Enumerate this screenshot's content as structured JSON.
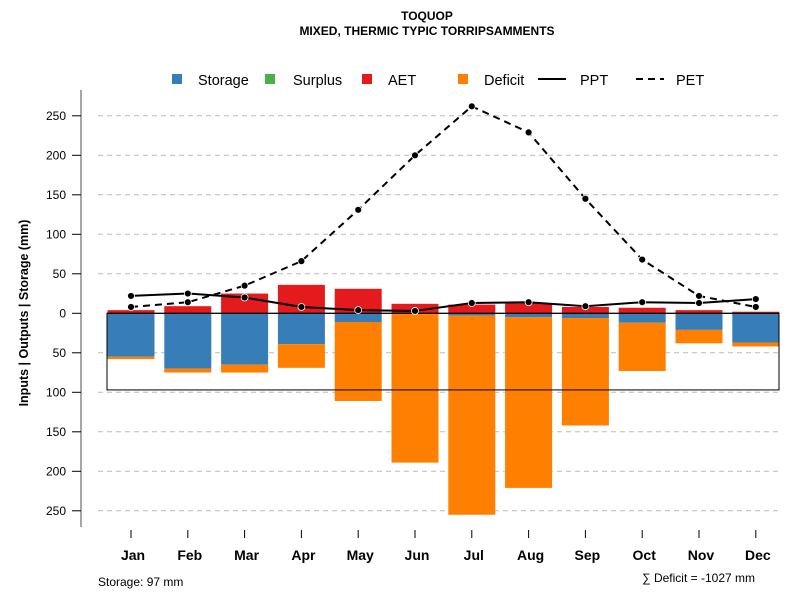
{
  "chart_data": {
    "type": "bar",
    "title": "TOQUOP",
    "subtitle": "MIXED, THERMIC TYPIC TORRIPSAMMENTS",
    "xlabel": "",
    "ylabel": "Inputs | Outputs | Storage    (mm)",
    "categories": [
      "Jan",
      "Feb",
      "Mar",
      "Apr",
      "May",
      "Jun",
      "Jul",
      "Aug",
      "Sep",
      "Oct",
      "Nov",
      "Dec"
    ],
    "ylim": [
      -275,
      275
    ],
    "yticks": [
      250,
      200,
      150,
      100,
      50,
      0,
      -50,
      -100,
      -150,
      -200,
      -250
    ],
    "ytick_labels": [
      "250",
      "200",
      "150",
      "100",
      "50",
      "0",
      "50",
      "100",
      "150",
      "200",
      "250"
    ],
    "grid": true,
    "legend_position": "top",
    "legend": [
      {
        "label": "Storage",
        "kind": "box",
        "color": "#377EB8"
      },
      {
        "label": "Surplus",
        "kind": "box",
        "color": "#4DAF4A"
      },
      {
        "label": "AET",
        "kind": "box",
        "color": "#E41A1C"
      },
      {
        "label": "Deficit",
        "kind": "box",
        "color": "#FF7F00"
      },
      {
        "label": "PPT",
        "kind": "solid-line",
        "color": "#000000"
      },
      {
        "label": "PET",
        "kind": "dashed-line",
        "color": "#000000"
      }
    ],
    "series": [
      {
        "name": "AET",
        "color": "#E41A1C",
        "values": [
          4,
          9,
          25,
          36,
          31,
          12,
          11,
          13,
          8,
          7,
          4,
          2
        ]
      },
      {
        "name": "Surplus",
        "color": "#4DAF4A",
        "values": [
          0,
          0,
          0,
          0,
          0,
          0,
          0,
          0,
          0,
          0,
          0,
          0
        ]
      },
      {
        "name": "Storage",
        "color": "#377EB8",
        "values": [
          -55,
          -70,
          -65,
          -39,
          -11,
          -1,
          -3,
          -5,
          -6,
          -12,
          -21,
          -37
        ]
      },
      {
        "name": "Deficit",
        "color": "#FF7F00",
        "values": [
          -3,
          -5,
          -10,
          -30,
          -100,
          -188,
          -252,
          -216,
          -136,
          -61,
          -17,
          -5
        ]
      },
      {
        "name": "PPT",
        "color": "#000000",
        "style": "solid",
        "values": [
          22,
          25,
          20,
          8,
          4,
          3,
          13,
          14,
          9,
          14,
          13,
          18
        ]
      },
      {
        "name": "PET",
        "color": "#000000",
        "style": "dashed",
        "values": [
          8,
          14,
          35,
          66,
          131,
          200,
          262,
          229,
          145,
          68,
          22,
          8
        ]
      }
    ],
    "storage_capacity": 97,
    "annotations": {
      "storage": "Storage: 97 mm",
      "deficit_sum": "∑ Deficit = -1027 mm"
    }
  }
}
